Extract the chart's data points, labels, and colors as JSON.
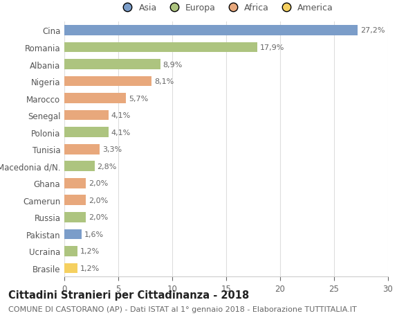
{
  "countries": [
    "Cina",
    "Romania",
    "Albania",
    "Nigeria",
    "Marocco",
    "Senegal",
    "Polonia",
    "Tunisia",
    "Macedonia d/N.",
    "Ghana",
    "Camerun",
    "Russia",
    "Pakistan",
    "Ucraina",
    "Brasile"
  ],
  "values": [
    27.2,
    17.9,
    8.9,
    8.1,
    5.7,
    4.1,
    4.1,
    3.3,
    2.8,
    2.0,
    2.0,
    2.0,
    1.6,
    1.2,
    1.2
  ],
  "labels": [
    "27,2%",
    "17,9%",
    "8,9%",
    "8,1%",
    "5,7%",
    "4,1%",
    "4,1%",
    "3,3%",
    "2,8%",
    "2,0%",
    "2,0%",
    "2,0%",
    "1,6%",
    "1,2%",
    "1,2%"
  ],
  "continents": [
    "Asia",
    "Europa",
    "Europa",
    "Africa",
    "Africa",
    "Africa",
    "Europa",
    "Africa",
    "Europa",
    "Africa",
    "Africa",
    "Europa",
    "Asia",
    "Europa",
    "America"
  ],
  "continent_colors": {
    "Asia": "#7b9dc9",
    "Europa": "#adc47f",
    "Africa": "#e8a87c",
    "America": "#f5d060"
  },
  "legend_order": [
    "Asia",
    "Europa",
    "Africa",
    "America"
  ],
  "title": "Cittadini Stranieri per Cittadinanza - 2018",
  "subtitle": "COMUNE DI CASTORANO (AP) - Dati ISTAT al 1° gennaio 2018 - Elaborazione TUTTITALIA.IT",
  "xlim": [
    0,
    30
  ],
  "xticks": [
    0,
    5,
    10,
    15,
    20,
    25,
    30
  ],
  "bg_color": "#ffffff",
  "grid_color": "#dddddd",
  "bar_height": 0.6,
  "title_fontsize": 10.5,
  "subtitle_fontsize": 8,
  "tick_label_fontsize": 8.5,
  "value_label_fontsize": 8,
  "legend_fontsize": 9
}
